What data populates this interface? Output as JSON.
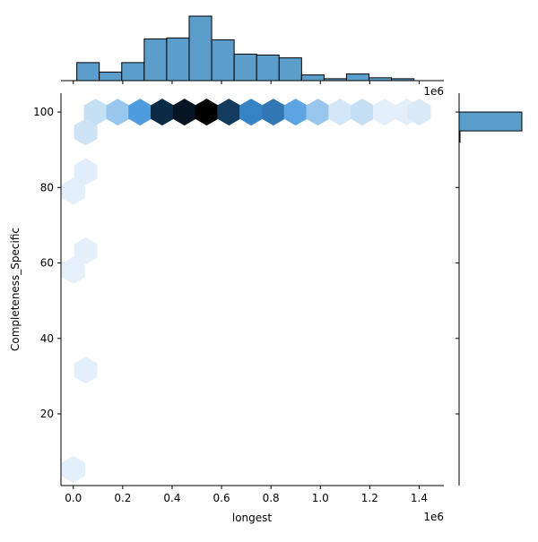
{
  "chart_data": {
    "type": "hexbin-joint",
    "xlabel": "longest",
    "ylabel": "Completeness_Specific",
    "x_offset_label": "1e6",
    "marginal_offset_label": "1e6",
    "xlim": [
      -0.05,
      1.5
    ],
    "ylim": [
      1,
      105
    ],
    "x_ticks": [
      {
        "value": 0.0,
        "label": "0.0"
      },
      {
        "value": 0.2,
        "label": "0.2"
      },
      {
        "value": 0.4,
        "label": "0.4"
      },
      {
        "value": 0.6,
        "label": "0.6"
      },
      {
        "value": 0.8,
        "label": "0.8"
      },
      {
        "value": 1.0,
        "label": "1.0"
      },
      {
        "value": 1.2,
        "label": "1.2"
      },
      {
        "value": 1.4,
        "label": "1.4"
      }
    ],
    "y_ticks": [
      {
        "value": 20,
        "label": "20"
      },
      {
        "value": 40,
        "label": "40"
      },
      {
        "value": 60,
        "label": "60"
      },
      {
        "value": 80,
        "label": "80"
      },
      {
        "value": 100,
        "label": "100"
      }
    ],
    "hexbins": [
      {
        "x": 0.09,
        "y": 100,
        "density": 0.15
      },
      {
        "x": 0.18,
        "y": 100,
        "density": 0.3
      },
      {
        "x": 0.27,
        "y": 100,
        "density": 0.55
      },
      {
        "x": 0.36,
        "y": 100,
        "density": 0.9
      },
      {
        "x": 0.45,
        "y": 100,
        "density": 0.95
      },
      {
        "x": 0.54,
        "y": 100,
        "density": 1.0
      },
      {
        "x": 0.63,
        "y": 100,
        "density": 0.85
      },
      {
        "x": 0.72,
        "y": 100,
        "density": 0.65
      },
      {
        "x": 0.81,
        "y": 100,
        "density": 0.68
      },
      {
        "x": 0.9,
        "y": 100,
        "density": 0.5
      },
      {
        "x": 0.99,
        "y": 100,
        "density": 0.3
      },
      {
        "x": 1.08,
        "y": 100,
        "density": 0.1
      },
      {
        "x": 1.17,
        "y": 100,
        "density": 0.15
      },
      {
        "x": 1.26,
        "y": 100,
        "density": 0.05
      },
      {
        "x": 1.35,
        "y": 100,
        "density": 0.05
      },
      {
        "x": 1.4,
        "y": 100,
        "density": 0.08
      },
      {
        "x": 0.05,
        "y": 94.7,
        "density": 0.12
      },
      {
        "x": 0.05,
        "y": 84.2,
        "density": 0.06
      },
      {
        "x": 0.0,
        "y": 79,
        "density": 0.05
      },
      {
        "x": 0.05,
        "y": 63.2,
        "density": 0.05
      },
      {
        "x": 0.0,
        "y": 58,
        "density": 0.04
      },
      {
        "x": 0.05,
        "y": 31.6,
        "density": 0.05
      },
      {
        "x": 0.0,
        "y": 5.3,
        "density": 0.05
      }
    ],
    "marginal_x": {
      "bin_edges": [
        0.014,
        0.105,
        0.196,
        0.287,
        0.378,
        0.469,
        0.56,
        0.651,
        0.742,
        0.833,
        0.924,
        1.015,
        1.106,
        1.197,
        1.288,
        1.379
      ],
      "counts": [
        19,
        9,
        19,
        44,
        45,
        68,
        43,
        28,
        27,
        24,
        6,
        2,
        7,
        3,
        2
      ]
    },
    "marginal_y": {
      "bins": [
        {
          "y0": 95,
          "y1": 100,
          "count": 100
        },
        {
          "y0": 92,
          "y1": 95,
          "count": 1
        }
      ]
    },
    "colors": {
      "hex_low": "#f2f7fd",
      "hex_mid": "#3f95dc",
      "hex_high": "#0b2a45",
      "hex_max": "#000000",
      "bar_fill": "#5b9ecb",
      "bar_edge": "#000000"
    }
  }
}
